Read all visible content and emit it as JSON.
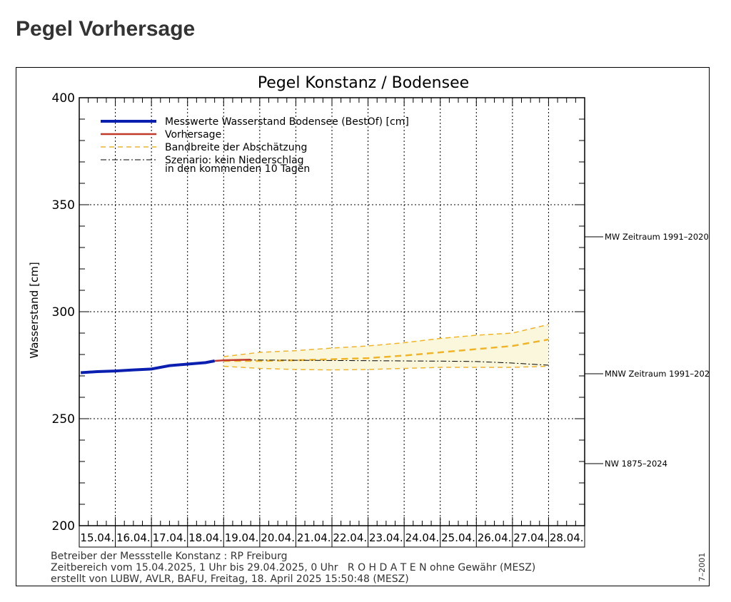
{
  "page": {
    "title": "Pegel Vorhersage"
  },
  "chart_data": {
    "type": "line",
    "title": "Pegel Konstanz / Bodensee",
    "ylabel": "Wasserstand [cm]",
    "xlabel": "",
    "ylim": [
      200,
      400
    ],
    "yticks": [
      200,
      250,
      300,
      350,
      400
    ],
    "xlim_days": [
      "15.04.",
      "29.04."
    ],
    "categories": [
      "15.04.",
      "16.04.",
      "17.04.",
      "18.04.",
      "19.04.",
      "20.04.",
      "21.04.",
      "22.04.",
      "23.04.",
      "24.04.",
      "25.04.",
      "26.04.",
      "27.04.",
      "28.04."
    ],
    "grid": true,
    "legend_position": "top-left",
    "legend": [
      {
        "label": "Messwerte Wasserstand Bodensee  (BestOf)  [cm]",
        "style": "measured"
      },
      {
        "label": "Vorhersage",
        "style": "forecast"
      },
      {
        "label": "Bandbreite der Abschätzung",
        "style": "band"
      },
      {
        "label": "Szenario: kein Niederschlag",
        "label2": "in den kommenden 10 Tagen",
        "style": "scenario"
      }
    ],
    "colors": {
      "measured": "#0a1fb0",
      "forecast": "#c0392b",
      "band": "#f0b429",
      "band_fill": "#fbf7dc",
      "scenario": "#000000"
    },
    "series": [
      {
        "name": "Messwerte Wasserstand Bodensee  (BestOf)  [cm]",
        "x": [
          "15.04. 01:00",
          "15.04. 12:00",
          "16.04. 00:00",
          "16.04. 12:00",
          "17.04. 00:00",
          "17.04. 12:00",
          "18.04. 00:00",
          "18.04. 12:00",
          "18.04. 18:00"
        ],
        "values": [
          271.5,
          272,
          272.3,
          272.8,
          273.2,
          274.8,
          275.5,
          276.2,
          277
        ]
      },
      {
        "name": "Vorhersage",
        "x": [
          "18.04. 18:00",
          "19.04. 00:00",
          "19.04. 18:00"
        ],
        "values": [
          277,
          277.3,
          277.6
        ]
      },
      {
        "name": "Bandbreite der Abschätzung (Median)",
        "x": [
          "19.04. 00:00",
          "20.04. 00:00",
          "21.04. 00:00",
          "22.04. 00:00",
          "23.04. 00:00",
          "24.04. 00:00",
          "25.04. 00:00",
          "26.04. 00:00",
          "27.04. 00:00",
          "28.04. 00:00"
        ],
        "values": [
          277,
          277,
          277.3,
          277.8,
          278.3,
          279.5,
          281,
          282.5,
          284,
          287
        ]
      },
      {
        "name": "Bandbreite der Abschätzung (oben)",
        "x": [
          "19.04. 00:00",
          "20.04. 00:00",
          "21.04. 00:00",
          "22.04. 00:00",
          "23.04. 00:00",
          "24.04. 00:00",
          "25.04. 00:00",
          "26.04. 00:00",
          "27.04. 00:00",
          "28.04. 00:00"
        ],
        "values": [
          279,
          281,
          281.8,
          283,
          284,
          285.5,
          287.5,
          289,
          290,
          294
        ]
      },
      {
        "name": "Bandbreite der Abschätzung (unten)",
        "x": [
          "19.04. 00:00",
          "20.04. 00:00",
          "21.04. 00:00",
          "22.04. 00:00",
          "23.04. 00:00",
          "24.04. 00:00",
          "25.04. 00:00",
          "26.04. 00:00",
          "27.04. 00:00",
          "28.04. 00:00"
        ],
        "values": [
          274.5,
          273.5,
          273,
          272.8,
          273,
          273.5,
          274,
          274,
          274,
          274.5
        ]
      },
      {
        "name": "Szenario: kein Niederschlag",
        "x": [
          "19.04. 00:00",
          "20.04. 00:00",
          "21.04. 00:00",
          "22.04. 00:00",
          "23.04. 00:00",
          "24.04. 00:00",
          "25.04. 00:00",
          "26.04. 00:00",
          "27.04. 00:00",
          "28.04. 00:00"
        ],
        "values": [
          277.5,
          277.4,
          277.3,
          277.2,
          277.1,
          277,
          276.9,
          276.7,
          276,
          275
        ]
      }
    ],
    "reference_levels": [
      {
        "label": "MW Zeitraum 1991–2020",
        "value": 335
      },
      {
        "label": "MNW Zeitraum 1991–202",
        "value": 271
      },
      {
        "label": "NW 1875–2024",
        "value": 229
      }
    ],
    "annotations": [
      "Betreiber der Messstelle Konstanz : RP Freiburg",
      "Zeitbereich vom 15.04.2025, 1 Uhr bis 29.04.2025, 0 Uhr   R O H D A T E N ohne Gewähr (MESZ)",
      "erstellt von LUBW, AVLR, BAFU, Freitag, 18. April 2025 15:50:48 (MESZ)"
    ],
    "side_code": "7–2001"
  }
}
